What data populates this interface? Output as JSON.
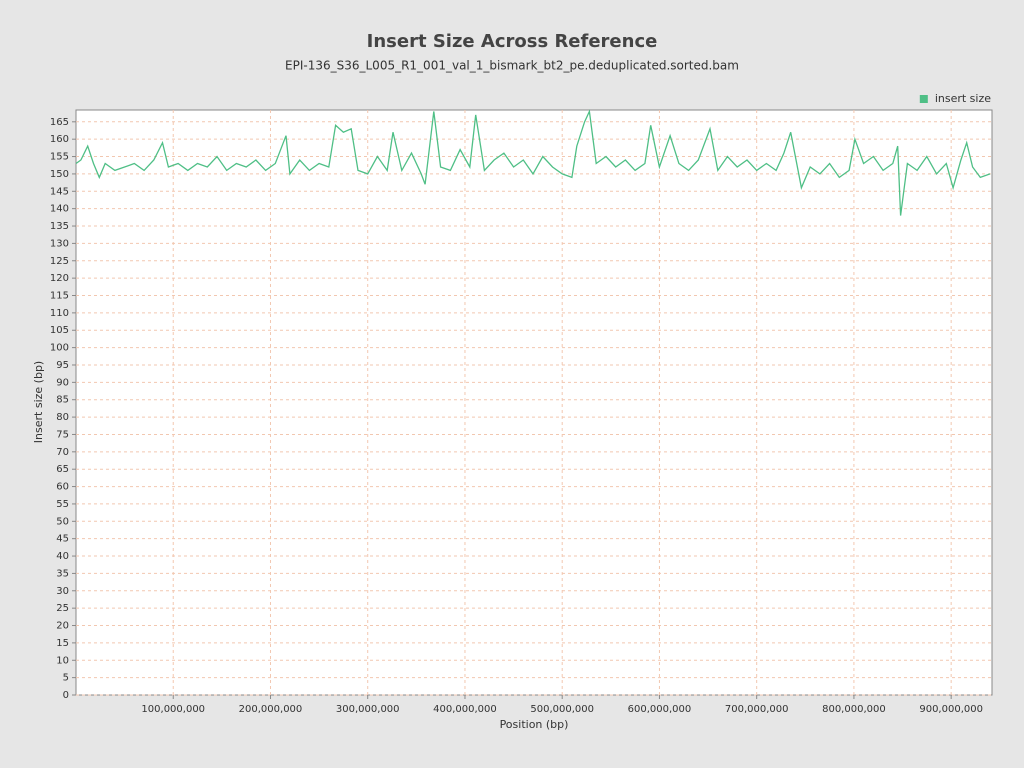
{
  "chart_data": {
    "type": "line",
    "title": "Insert Size Across Reference",
    "subtitle": "EPI-136_S36_L005_R1_001_val_1_bismark_bt2_pe.deduplicated.sorted.bam",
    "x_label": "Position (bp)",
    "y_label": "Insert size (bp)",
    "legend": "top-right",
    "grid": true,
    "xlim": [
      0,
      942000000
    ],
    "ylim": [
      0,
      168.4
    ],
    "xticks": [
      {
        "value": 100000000,
        "label": "100,000,000"
      },
      {
        "value": 200000000,
        "label": "200,000,000"
      },
      {
        "value": 300000000,
        "label": "300,000,000"
      },
      {
        "value": 400000000,
        "label": "400,000,000"
      },
      {
        "value": 500000000,
        "label": "500,000,000"
      },
      {
        "value": 600000000,
        "label": "600,000,000"
      },
      {
        "value": 700000000,
        "label": "700,000,000"
      },
      {
        "value": 800000000,
        "label": "800,000,000"
      },
      {
        "value": 900000000,
        "label": "900,000,000"
      }
    ],
    "yticks": [
      0,
      5,
      10,
      15,
      20,
      25,
      30,
      35,
      40,
      45,
      50,
      55,
      60,
      65,
      70,
      75,
      80,
      85,
      90,
      95,
      100,
      105,
      110,
      115,
      120,
      125,
      130,
      135,
      140,
      145,
      150,
      155,
      160,
      165
    ],
    "x": [
      0,
      5000000,
      12000000,
      18000000,
      24000000,
      30000000,
      40000000,
      50000000,
      60000000,
      70000000,
      80000000,
      89000000,
      95000000,
      105000000,
      115000000,
      125000000,
      135000000,
      145000000,
      155000000,
      165000000,
      175000000,
      185000000,
      195000000,
      205000000,
      216000000,
      220000000,
      230000000,
      240000000,
      250000000,
      260000000,
      267000000,
      275000000,
      283000000,
      290000000,
      300000000,
      310000000,
      320000000,
      326000000,
      335000000,
      345000000,
      355000000,
      359000000,
      368000000,
      375000000,
      385000000,
      395000000,
      405000000,
      411000000,
      420000000,
      430000000,
      440000000,
      450000000,
      460000000,
      470000000,
      480000000,
      490000000,
      500000000,
      510000000,
      515000000,
      523000000,
      528000000,
      535000000,
      545000000,
      555000000,
      565000000,
      575000000,
      585000000,
      591000000,
      600000000,
      611000000,
      620000000,
      630000000,
      640000000,
      652000000,
      660000000,
      670000000,
      680000000,
      690000000,
      700000000,
      710000000,
      720000000,
      728000000,
      735000000,
      746000000,
      755000000,
      765000000,
      775000000,
      785000000,
      795000000,
      801000000,
      810000000,
      820000000,
      830000000,
      840000000,
      845000000,
      848000000,
      855000000,
      865000000,
      875000000,
      885000000,
      895000000,
      902000000,
      910000000,
      916000000,
      922000000,
      930000000,
      940000000
    ],
    "series": [
      {
        "name": "insert size",
        "color": "#4fbf86",
        "values": [
          153,
          154,
          158,
          153,
          149,
          153,
          151,
          152,
          153,
          151,
          154,
          159,
          152,
          153,
          151,
          153,
          152,
          155,
          151,
          153,
          152,
          154,
          151,
          153,
          161,
          150,
          154,
          151,
          153,
          152,
          164,
          162,
          163,
          151,
          150,
          155,
          151,
          162,
          151,
          156,
          150,
          147,
          168,
          152,
          151,
          157,
          152,
          167,
          151,
          154,
          156,
          152,
          154,
          150,
          155,
          152,
          150,
          149,
          158,
          165,
          168,
          153,
          155,
          152,
          154,
          151,
          153,
          164,
          152,
          161,
          153,
          151,
          154,
          163,
          151,
          155,
          152,
          154,
          151,
          153,
          151,
          156,
          162,
          146,
          152,
          150,
          153,
          149,
          151,
          160,
          153,
          155,
          151,
          153,
          158,
          138,
          153,
          151,
          155,
          150,
          153,
          146,
          154,
          159,
          152,
          149,
          150
        ]
      }
    ]
  }
}
